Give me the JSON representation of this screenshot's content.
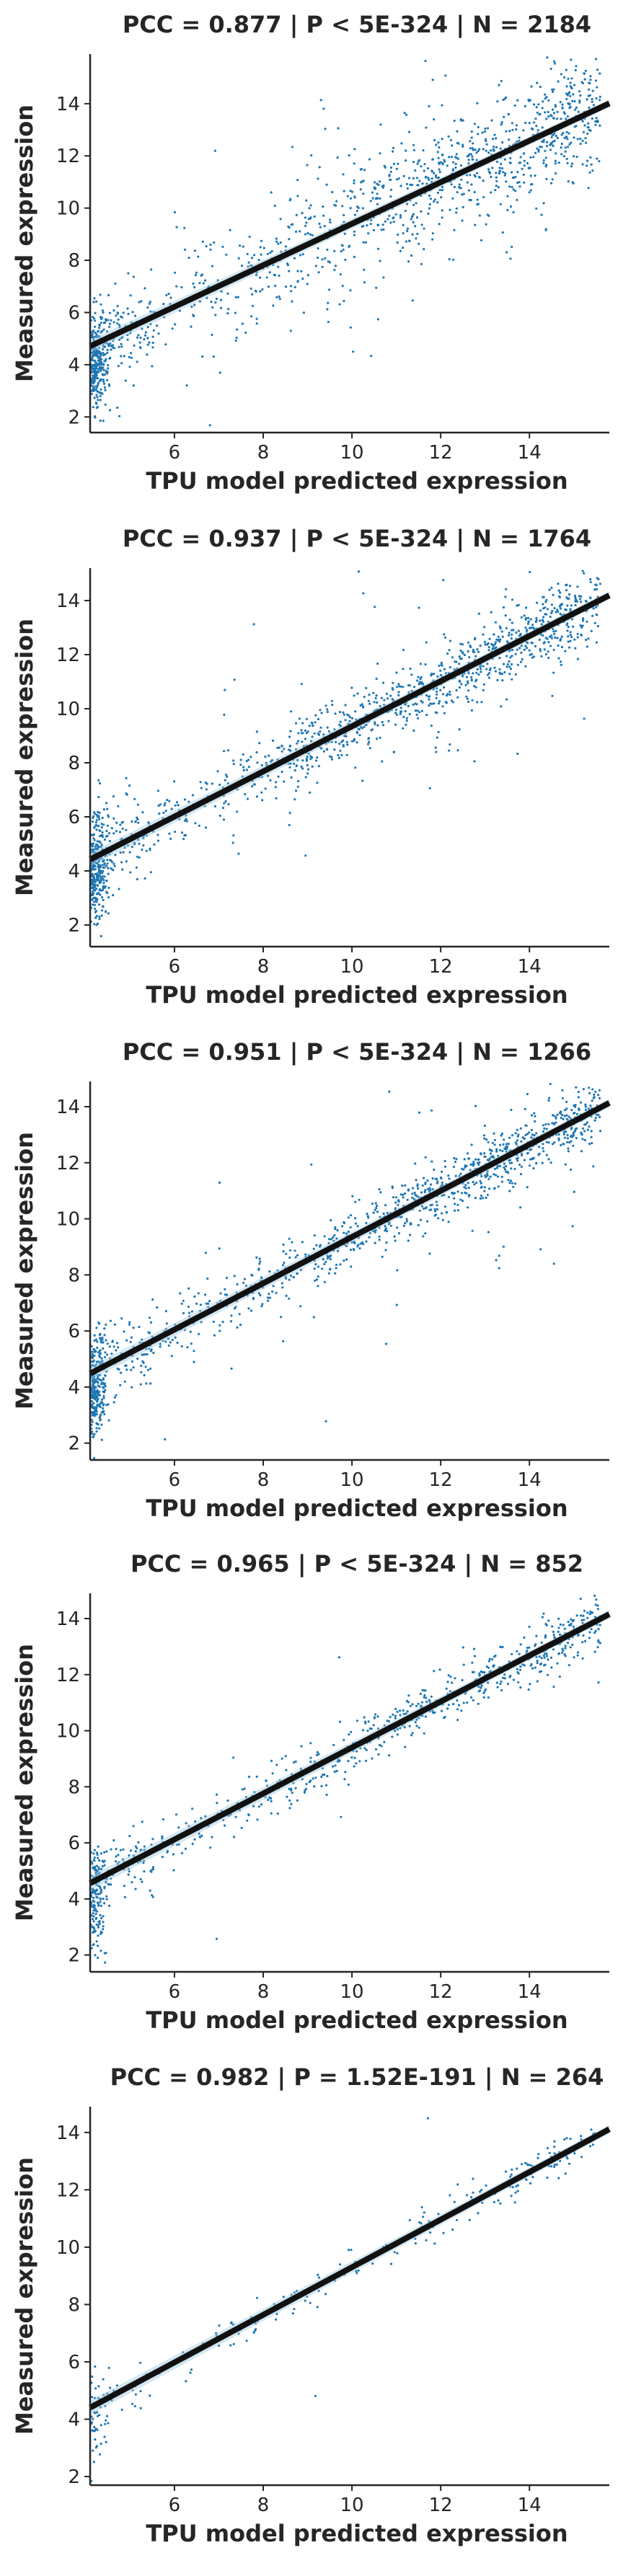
{
  "chart_data": [
    {
      "type": "scatter",
      "title": "PCC =  0.877 | P <  5E-324 | N = 2184",
      "xlabel": "TPU model predicted expression",
      "ylabel": "Measured expression",
      "xlim": [
        4.1,
        15.8
      ],
      "ylim": [
        1.4,
        15.9
      ],
      "xticks": [
        "6",
        "8",
        "10",
        "12",
        "14"
      ],
      "yticks": [
        "2",
        "4",
        "6",
        "8",
        "10",
        "12",
        "14"
      ],
      "pcc": 0.877,
      "n": 2184,
      "regression": {
        "slope": 0.795,
        "intercept": 1.45
      },
      "color": "#1f77b4"
    },
    {
      "type": "scatter",
      "title": "PCC =  0.937 | P <  5E-324 | N = 1764",
      "xlabel": "TPU model predicted expression",
      "ylabel": "Measured expression",
      "xlim": [
        4.1,
        15.8
      ],
      "ylim": [
        1.2,
        15.2
      ],
      "xticks": [
        "6",
        "8",
        "10",
        "12",
        "14"
      ],
      "yticks": [
        "2",
        "4",
        "6",
        "8",
        "10",
        "12",
        "14"
      ],
      "pcc": 0.937,
      "n": 1764,
      "regression": {
        "slope": 0.835,
        "intercept": 1.0
      },
      "color": "#1f77b4"
    },
    {
      "type": "scatter",
      "title": "PCC =  0.951 | P <  5E-324 | N = 1266",
      "xlabel": "TPU model predicted expression",
      "ylabel": "Measured expression",
      "xlim": [
        4.1,
        15.8
      ],
      "ylim": [
        1.4,
        14.9
      ],
      "xticks": [
        "6",
        "8",
        "10",
        "12",
        "14"
      ],
      "yticks": [
        "2",
        "4",
        "6",
        "8",
        "10",
        "12",
        "14"
      ],
      "pcc": 0.951,
      "n": 1266,
      "regression": {
        "slope": 0.825,
        "intercept": 1.1
      },
      "color": "#1f77b4"
    },
    {
      "type": "scatter",
      "title": "PCC =  0.965 | P <  5E-324 | N = 852",
      "xlabel": "TPU model predicted expression",
      "ylabel": "Measured expression",
      "xlim": [
        4.1,
        15.8
      ],
      "ylim": [
        1.4,
        14.9
      ],
      "xticks": [
        "6",
        "8",
        "10",
        "12",
        "14"
      ],
      "yticks": [
        "2",
        "4",
        "6",
        "8",
        "10",
        "12",
        "14"
      ],
      "pcc": 0.965,
      "n": 852,
      "regression": {
        "slope": 0.82,
        "intercept": 1.2
      },
      "color": "#1f77b4"
    },
    {
      "type": "scatter",
      "title": "PCC =  0.982 | P =  1.52E-191 | N = 264",
      "xlabel": "TPU model predicted expression",
      "ylabel": "Measured expression",
      "xlim": [
        4.1,
        15.8
      ],
      "ylim": [
        1.7,
        14.9
      ],
      "xticks": [
        "6",
        "8",
        "10",
        "12",
        "14"
      ],
      "yticks": [
        "2",
        "4",
        "6",
        "8",
        "10",
        "12",
        "14"
      ],
      "pcc": 0.982,
      "n": 264,
      "regression": {
        "slope": 0.83,
        "intercept": 1.0
      },
      "color": "#1f77b4"
    }
  ]
}
